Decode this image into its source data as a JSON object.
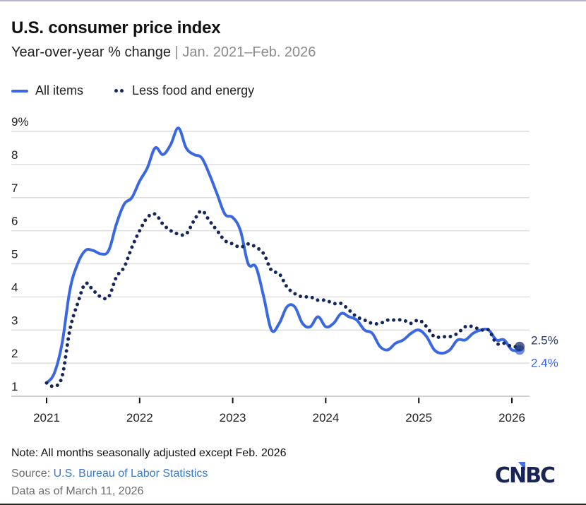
{
  "chart_data": {
    "type": "line",
    "title": "U.S. consumer price index",
    "subtitle": "Year-over-year % change",
    "subtitle_range": "Jan. 2021–Feb. 2026",
    "xlabel": "",
    "ylabel": "",
    "ylim": [
      1,
      9
    ],
    "y_ticks": [
      1,
      2,
      3,
      4,
      5,
      6,
      7,
      8,
      9
    ],
    "y_tick_labels": [
      "1",
      "2",
      "3",
      "4",
      "5",
      "6",
      "7",
      "8",
      "9%"
    ],
    "x_ticks": [
      "2021",
      "2022",
      "2023",
      "2024",
      "2025",
      "2026"
    ],
    "x_start": "2021-01",
    "x_end": "2026-02",
    "grid": true,
    "legend_position": "top-left",
    "series": [
      {
        "name": "All items",
        "style": "solid",
        "color": "#3a68e3",
        "end_label": "2.4%",
        "values": [
          1.4,
          1.7,
          2.6,
          4.2,
          5.0,
          5.4,
          5.4,
          5.3,
          5.4,
          6.2,
          6.8,
          7.0,
          7.5,
          7.9,
          8.5,
          8.3,
          8.6,
          9.1,
          8.5,
          8.3,
          8.2,
          7.7,
          7.1,
          6.5,
          6.4,
          6.0,
          5.0,
          4.9,
          4.0,
          3.0,
          3.2,
          3.7,
          3.7,
          3.2,
          3.1,
          3.4,
          3.1,
          3.2,
          3.5,
          3.4,
          3.3,
          3.0,
          2.9,
          2.5,
          2.4,
          2.6,
          2.7,
          2.9,
          3.0,
          2.8,
          2.4,
          2.3,
          2.4,
          2.7,
          2.7,
          2.9,
          3.0,
          3.0,
          2.7,
          2.7,
          2.4,
          2.4
        ]
      },
      {
        "name": "Less food and energy",
        "style": "dotted",
        "color": "#14265c",
        "end_label": "2.5%",
        "values": [
          1.4,
          1.3,
          1.6,
          3.0,
          3.8,
          4.4,
          4.2,
          4.0,
          4.0,
          4.6,
          4.9,
          5.5,
          6.0,
          6.4,
          6.5,
          6.2,
          6.0,
          5.9,
          5.9,
          6.3,
          6.6,
          6.3,
          6.0,
          5.7,
          5.6,
          5.5,
          5.6,
          5.5,
          5.3,
          4.8,
          4.7,
          4.3,
          4.1,
          4.0,
          4.0,
          3.9,
          3.9,
          3.8,
          3.8,
          3.6,
          3.4,
          3.3,
          3.2,
          3.2,
          3.3,
          3.3,
          3.3,
          3.2,
          3.3,
          3.1,
          2.8,
          2.8,
          2.8,
          2.9,
          3.1,
          3.1,
          3.0,
          3.0,
          2.6,
          2.6,
          2.5,
          2.5
        ]
      }
    ]
  },
  "header": {
    "title": "U.S. consumer price index",
    "subtitle_main": "Year-over-year % change",
    "subtitle_sep": " | ",
    "subtitle_range": "Jan. 2021–Feb. 2026"
  },
  "legend": {
    "items": [
      {
        "label": "All items",
        "icon": "solid-line"
      },
      {
        "label": "Less food and energy",
        "icon": "dotted-line"
      }
    ]
  },
  "footer": {
    "note": "Note: All months seasonally adjusted except Feb. 2026",
    "source_prefix": "Source: ",
    "source_link": "U.S. Bureau of Labor Statistics",
    "as_of": "Data as of March 11, 2026",
    "logo_text": "CNBC"
  },
  "colors": {
    "all_items": "#3a68e3",
    "core": "#14265c",
    "grid": "#dcdcdc",
    "logo_navy": "#1a2557",
    "logo_blue": "#3b73e8"
  }
}
